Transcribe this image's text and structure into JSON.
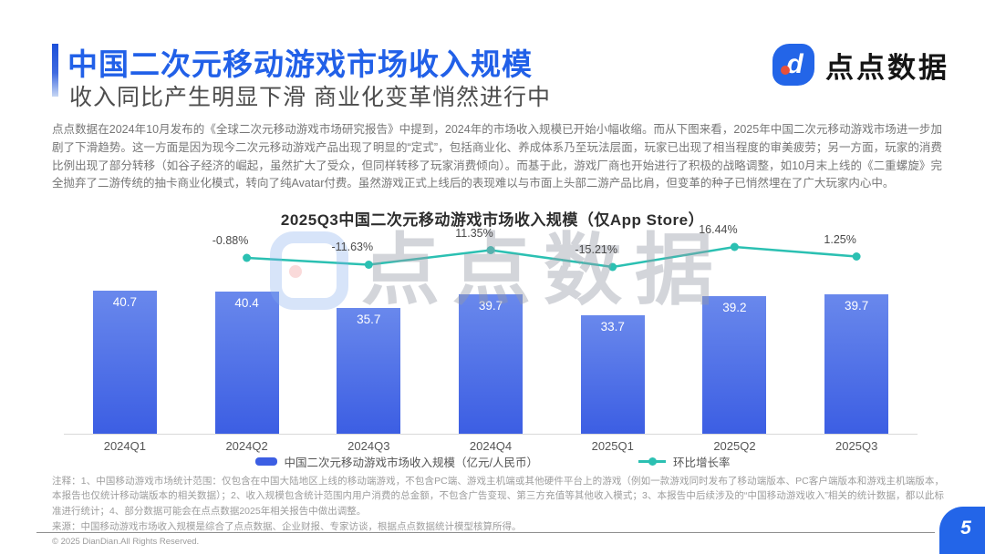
{
  "theme": {
    "accent": "#2160e8",
    "bar_top": "#6988ec",
    "bar_bottom": "#3c5ee3",
    "line_teal": "#2bc0b2",
    "badge_blue": "#2365e8"
  },
  "header": {
    "title": "中国二次元移动游戏市场收入规模",
    "subtitle": "收入同比产生明显下滑 商业化变革悄然进行中",
    "logo_mark": "d",
    "logo_text": "点点数据"
  },
  "body": {
    "paragraph": "点点数据在2024年10月发布的《全球二次元移动游戏市场研究报告》中提到，2024年的市场收入规模已开始小幅收缩。而从下图来看，2025年中国二次元移动游戏市场进一步加剧了下滑趋势。这一方面是因为现今二次元移动游戏产品出现了明显的“定式”，包括商业化、养成体系乃至玩法层面，玩家已出现了相当程度的审美疲劳；另一方面，玩家的消费比例出现了部分转移（如谷子经济的崛起，虽然扩大了受众，但同样转移了玩家消费倾向）。而基于此，游戏厂商也开始进行了积极的战略调整，如10月末上线的《二重螺旋》完全抛弃了二游传统的抽卡商业化模式，转向了纯Avatar付费。虽然游戏正式上线后的表现难以与市面上头部二游产品比肩，但变革的种子已悄然埋在了广大玩家内心中。"
  },
  "chart_data": {
    "type": "bar",
    "title": "2025Q3中国二次元移动游戏市场收入规模（仅App Store）",
    "categories": [
      "2024Q1",
      "2024Q2",
      "2024Q3",
      "2024Q4",
      "2025Q1",
      "2025Q2",
      "2025Q3"
    ],
    "series": [
      {
        "name": "中国二次元移动游戏市场收入规模（亿元/人民币）",
        "type": "bar",
        "values": [
          40.7,
          40.4,
          35.7,
          39.7,
          33.7,
          39.2,
          39.7
        ]
      },
      {
        "name": "环比增长率",
        "type": "line",
        "values": [
          null,
          -0.88,
          -11.63,
          11.35,
          -15.21,
          16.44,
          1.25
        ],
        "labels": [
          "",
          "-0.88%",
          "-11.63%",
          "11.35%",
          "-15.21%",
          "16.44%",
          "1.25%"
        ]
      }
    ],
    "ylabel": "",
    "xlabel": "",
    "grid": false,
    "legend_position": "bottom",
    "watermark_text": "点点数据"
  },
  "notes": {
    "note": "注释：1、中国移动游戏市场统计范围：仅包含在中国大陆地区上线的移动端游戏，不包含PC端、游戏主机端或其他硬件平台上的游戏（例如一款游戏同时发布了移动端版本、PC客户端版本和游戏主机端版本，本报告也仅统计移动端版本的相关数据）；2、收入规模包含统计范围内用户消费的总金额，不包含广告变现、第三方充值等其他收入模式；3、本报告中后续涉及的“中国移动游戏收入”相关的统计数据，都以此标准进行统计；4、部分数据可能会在点点数据2025年相关报告中做出调整。",
    "source": "来源：中国移动游戏市场收入规模是综合了点点数据、企业财报、专家访谈，根据点点数据统计模型核算所得。"
  },
  "footer": {
    "copyright": "© 2025 DianDian.All Rights Reserved.",
    "page_number": "5"
  }
}
